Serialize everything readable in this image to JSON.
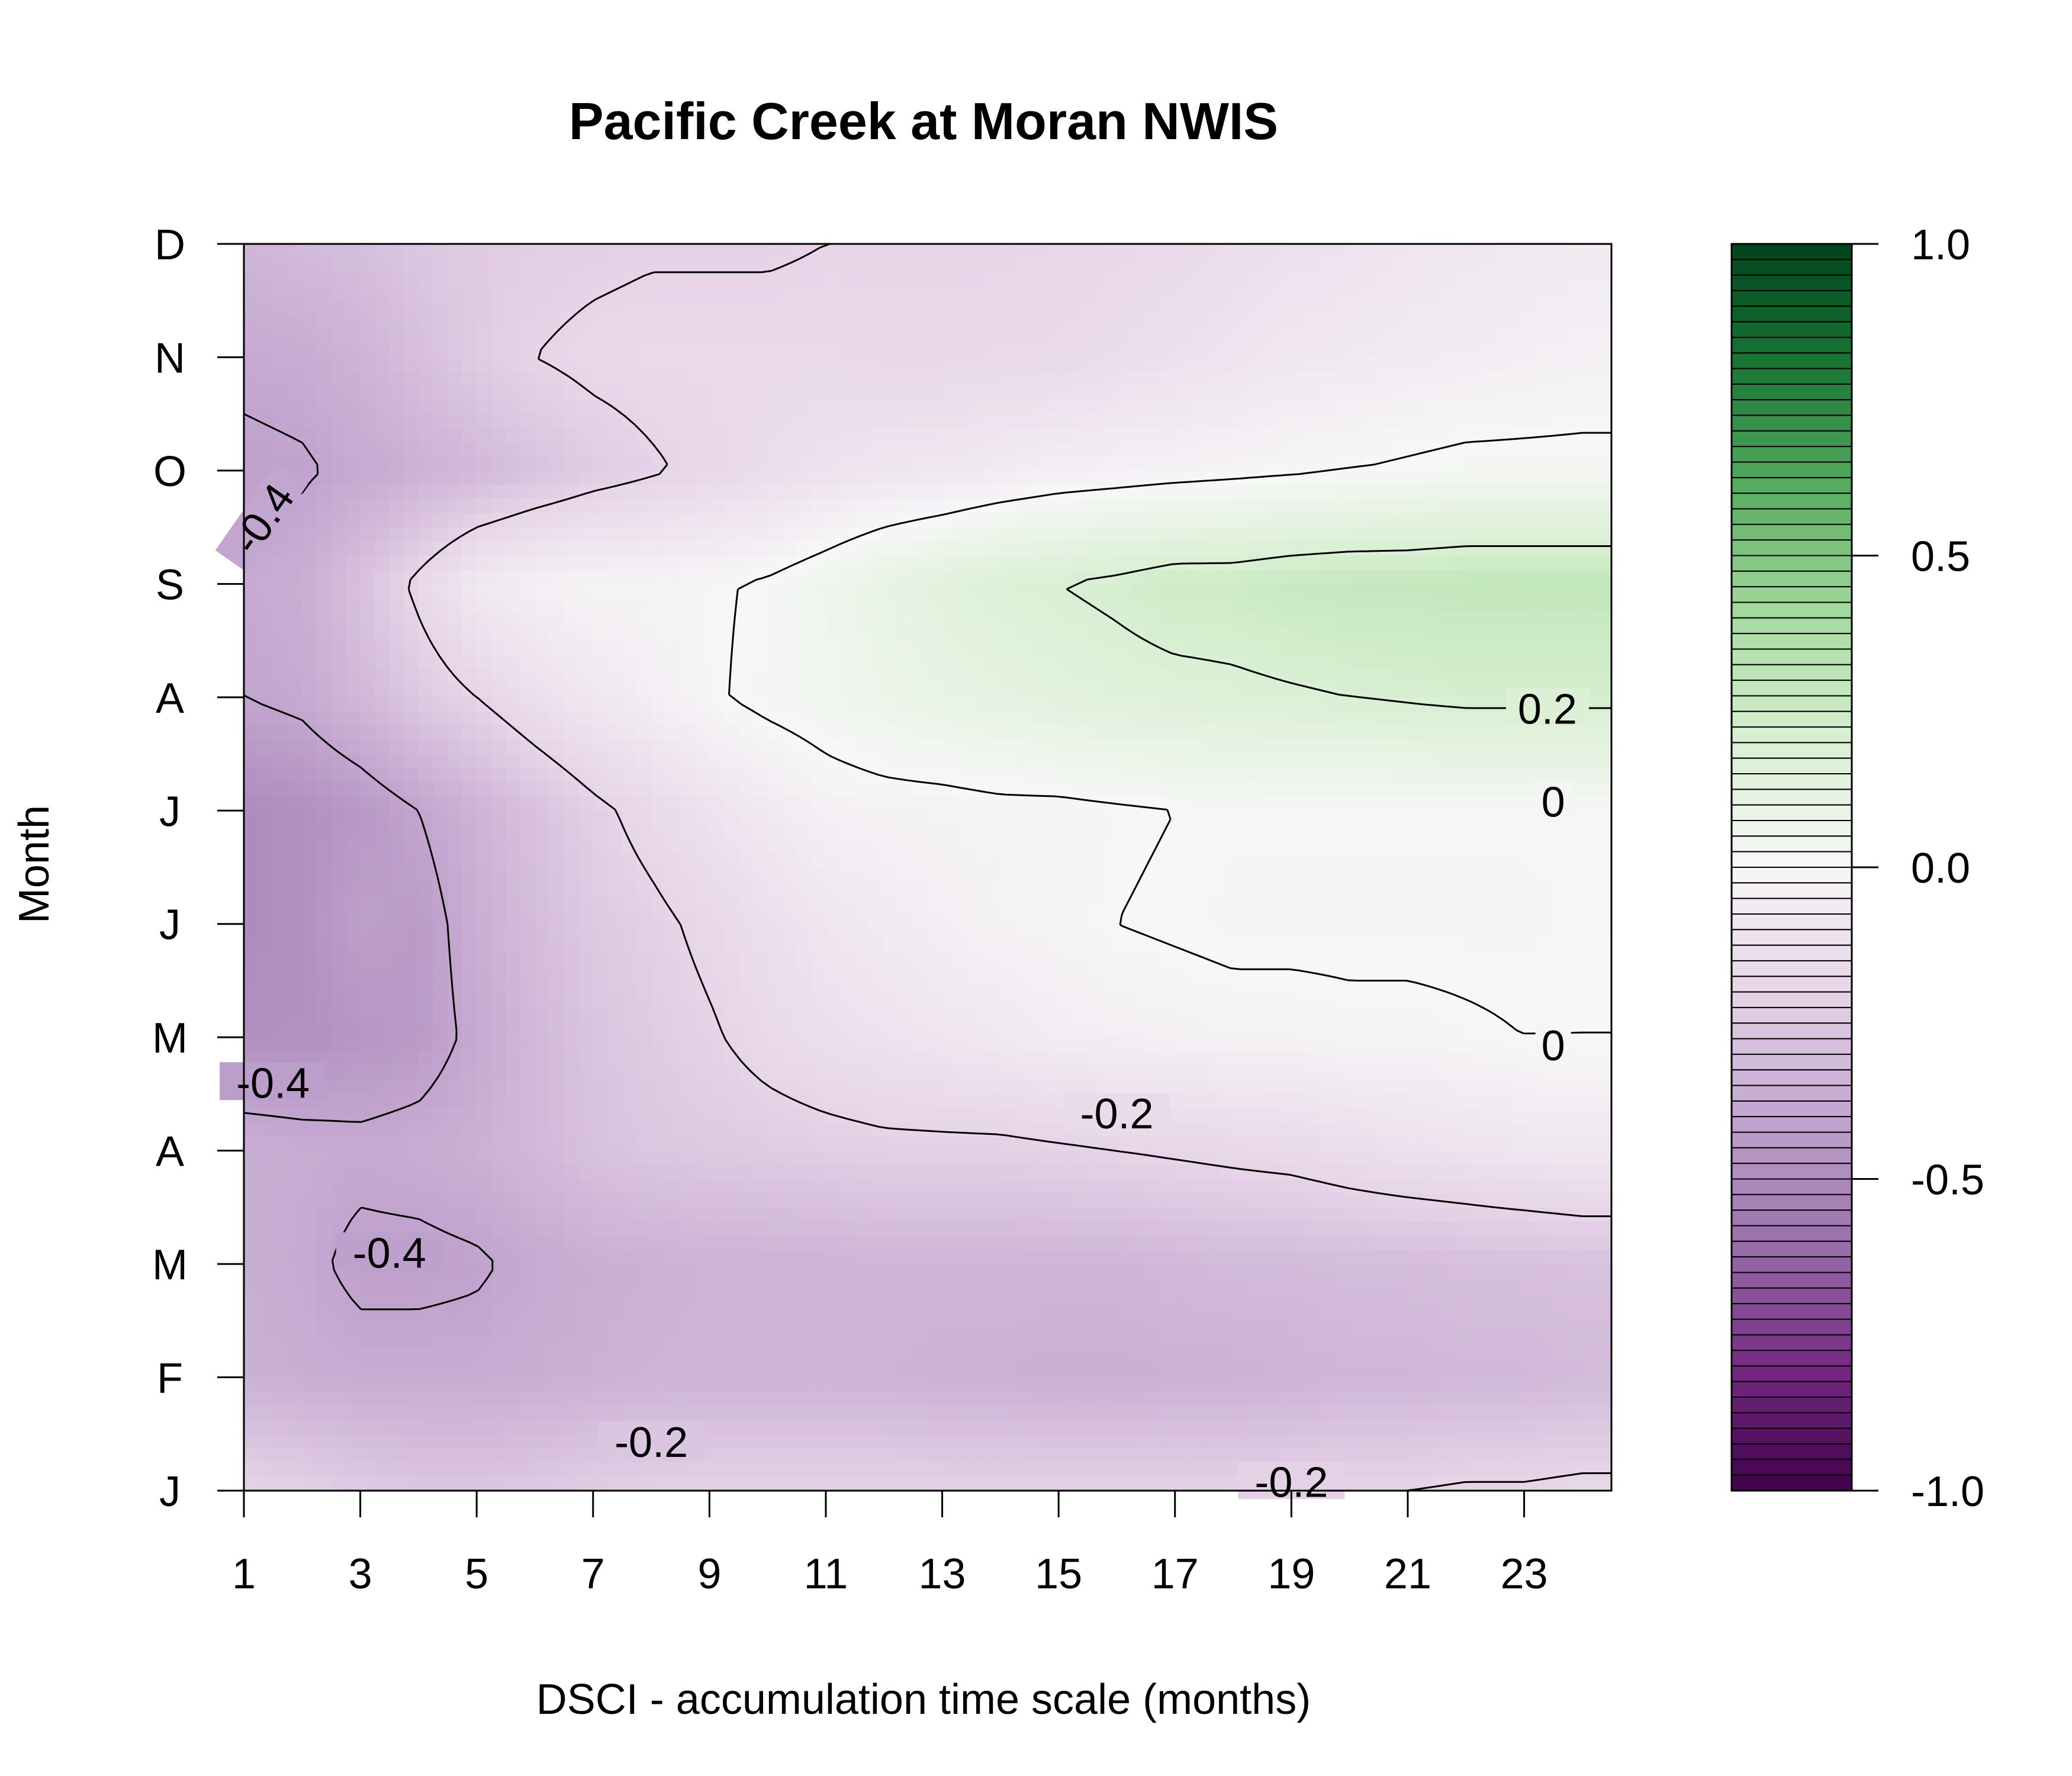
{
  "chart_data": {
    "type": "heatmap",
    "subtype": "filled-contour",
    "title": "Pacific Creek at Moran NWIS",
    "xlabel": "DSCI - accumulation time scale (months)",
    "ylabel": "Month",
    "x": [
      1,
      2,
      3,
      4,
      5,
      6,
      7,
      8,
      9,
      10,
      11,
      12,
      13,
      14,
      15,
      16,
      17,
      18,
      19,
      20,
      21,
      22,
      23,
      24
    ],
    "xticks": [
      1,
      3,
      5,
      7,
      9,
      11,
      13,
      15,
      17,
      19,
      21,
      23
    ],
    "xlim": [
      1,
      24.5
    ],
    "months": [
      "J",
      "F",
      "M",
      "A",
      "M",
      "J",
      "J",
      "A",
      "S",
      "O",
      "N",
      "D"
    ],
    "ylim": [
      1,
      12
    ],
    "z": [
      [
        -0.2,
        -0.22,
        -0.24,
        -0.26,
        -0.26,
        -0.25,
        -0.23,
        -0.22,
        -0.21,
        -0.21,
        -0.21,
        -0.21,
        -0.21,
        -0.21,
        -0.21,
        -0.21,
        -0.21,
        -0.21,
        -0.21,
        -0.2,
        -0.2,
        -0.19,
        -0.19,
        -0.18
      ],
      [
        -0.35,
        -0.36,
        -0.37,
        -0.37,
        -0.37,
        -0.36,
        -0.35,
        -0.34,
        -0.34,
        -0.34,
        -0.34,
        -0.34,
        -0.35,
        -0.35,
        -0.36,
        -0.36,
        -0.35,
        -0.35,
        -0.34,
        -0.33,
        -0.33,
        -0.32,
        -0.32,
        -0.31
      ],
      [
        -0.36,
        -0.38,
        -0.42,
        -0.42,
        -0.41,
        -0.38,
        -0.36,
        -0.35,
        -0.34,
        -0.34,
        -0.34,
        -0.33,
        -0.33,
        -0.33,
        -0.33,
        -0.33,
        -0.32,
        -0.31,
        -0.31,
        -0.3,
        -0.3,
        -0.29,
        -0.29,
        -0.28
      ],
      [
        -0.36,
        -0.37,
        -0.38,
        -0.37,
        -0.35,
        -0.32,
        -0.28,
        -0.26,
        -0.25,
        -0.24,
        -0.23,
        -0.22,
        -0.22,
        -0.22,
        -0.21,
        -0.2,
        -0.19,
        -0.18,
        -0.17,
        -0.15,
        -0.13,
        -0.12,
        -0.1,
        -0.09
      ],
      [
        -0.48,
        -0.48,
        -0.46,
        -0.44,
        -0.38,
        -0.32,
        -0.27,
        -0.24,
        -0.21,
        -0.17,
        -0.14,
        -0.12,
        -0.1,
        -0.08,
        -0.06,
        -0.05,
        -0.04,
        -0.03,
        -0.03,
        -0.02,
        -0.02,
        -0.01,
        0.0,
        0.0
      ],
      [
        -0.5,
        -0.48,
        -0.42,
        -0.44,
        -0.36,
        -0.3,
        -0.25,
        -0.22,
        -0.18,
        -0.14,
        -0.1,
        -0.07,
        -0.05,
        -0.03,
        -0.02,
        0.0,
        0.01,
        0.02,
        0.02,
        0.02,
        0.02,
        0.02,
        0.02,
        0.01
      ],
      [
        -0.5,
        -0.48,
        -0.45,
        -0.4,
        -0.34,
        -0.28,
        -0.22,
        -0.17,
        -0.12,
        -0.08,
        -0.04,
        -0.03,
        -0.03,
        -0.02,
        -0.02,
        -0.01,
        0.0,
        0.01,
        0.01,
        0.01,
        0.01,
        0.01,
        0.01,
        0.01
      ],
      [
        -0.4,
        -0.38,
        -0.32,
        -0.25,
        -0.2,
        -0.14,
        -0.09,
        -0.05,
        -0.01,
        0.02,
        0.04,
        0.07,
        0.1,
        0.12,
        0.14,
        0.16,
        0.17,
        0.18,
        0.19,
        0.2,
        0.21,
        0.22,
        0.22,
        0.22
      ],
      [
        -0.38,
        -0.36,
        -0.28,
        -0.18,
        -0.08,
        -0.04,
        -0.02,
        -0.02,
        -0.01,
        0.01,
        0.05,
        0.1,
        0.14,
        0.18,
        0.2,
        0.22,
        0.25,
        0.25,
        0.27,
        0.28,
        0.28,
        0.29,
        0.29,
        0.29
      ],
      [
        -0.42,
        -0.41,
        -0.38,
        -0.35,
        -0.32,
        -0.28,
        -0.24,
        -0.21,
        -0.18,
        -0.15,
        -0.12,
        -0.1,
        -0.09,
        -0.07,
        -0.05,
        -0.04,
        -0.03,
        -0.02,
        -0.01,
        0.0,
        0.01,
        0.02,
        0.02,
        0.02
      ],
      [
        -0.38,
        -0.37,
        -0.34,
        -0.29,
        -0.24,
        -0.2,
        -0.18,
        -0.17,
        -0.17,
        -0.17,
        -0.17,
        -0.18,
        -0.18,
        -0.17,
        -0.17,
        -0.15,
        -0.13,
        -0.11,
        -0.09,
        -0.08,
        -0.07,
        -0.06,
        -0.05,
        -0.04
      ],
      [
        -0.33,
        -0.31,
        -0.29,
        -0.26,
        -0.24,
        -0.23,
        -0.22,
        -0.21,
        -0.21,
        -0.21,
        -0.2,
        -0.2,
        -0.2,
        -0.2,
        -0.19,
        -0.18,
        -0.17,
        -0.15,
        -0.13,
        -0.12,
        -0.1,
        -0.09,
        -0.08,
        -0.07
      ]
    ],
    "contour_levels": [
      -0.4,
      -0.2,
      0,
      0.2
    ],
    "contour_labels": [
      {
        "text": "-0.4",
        "x": 1.4,
        "y": 9.55,
        "rotate": -55
      },
      {
        "text": "-0.4",
        "x": 1.5,
        "y": 4.55,
        "rotate": 0
      },
      {
        "text": "-0.4",
        "x": 3.5,
        "y": 3.05,
        "rotate": 0
      },
      {
        "text": "-0.2",
        "x": 8.0,
        "y": 1.38,
        "rotate": 0
      },
      {
        "text": "-0.2",
        "x": 19.0,
        "y": 1.03,
        "rotate": 0
      },
      {
        "text": "-0.2",
        "x": 16.0,
        "y": 4.28,
        "rotate": 0
      },
      {
        "text": "0.2",
        "x": 23.4,
        "y": 7.85,
        "rotate": 0
      },
      {
        "text": "0",
        "x": 23.5,
        "y": 7.03,
        "rotate": 0
      },
      {
        "text": "0",
        "x": 23.5,
        "y": 4.88,
        "rotate": 0
      }
    ],
    "colorbar": {
      "zlim": [
        -1.0,
        1.0
      ],
      "ticks": [
        "1.0",
        "0.5",
        "0.0",
        "-0.5",
        "-1.0"
      ],
      "tick_values": [
        1.0,
        0.5,
        0.0,
        -0.5,
        -1.0
      ],
      "colors_neg": [
        "#40004b",
        "#762a83",
        "#9970ab",
        "#c2a5cf",
        "#e7d4e8",
        "#f7f7f7"
      ],
      "colors_pos": [
        "#f7f7f7",
        "#d9f0d3",
        "#a6dba0",
        "#5aae61",
        "#1b7837",
        "#00441b"
      ],
      "bins": 80
    },
    "grid": false,
    "legend": "colorbar-right"
  }
}
